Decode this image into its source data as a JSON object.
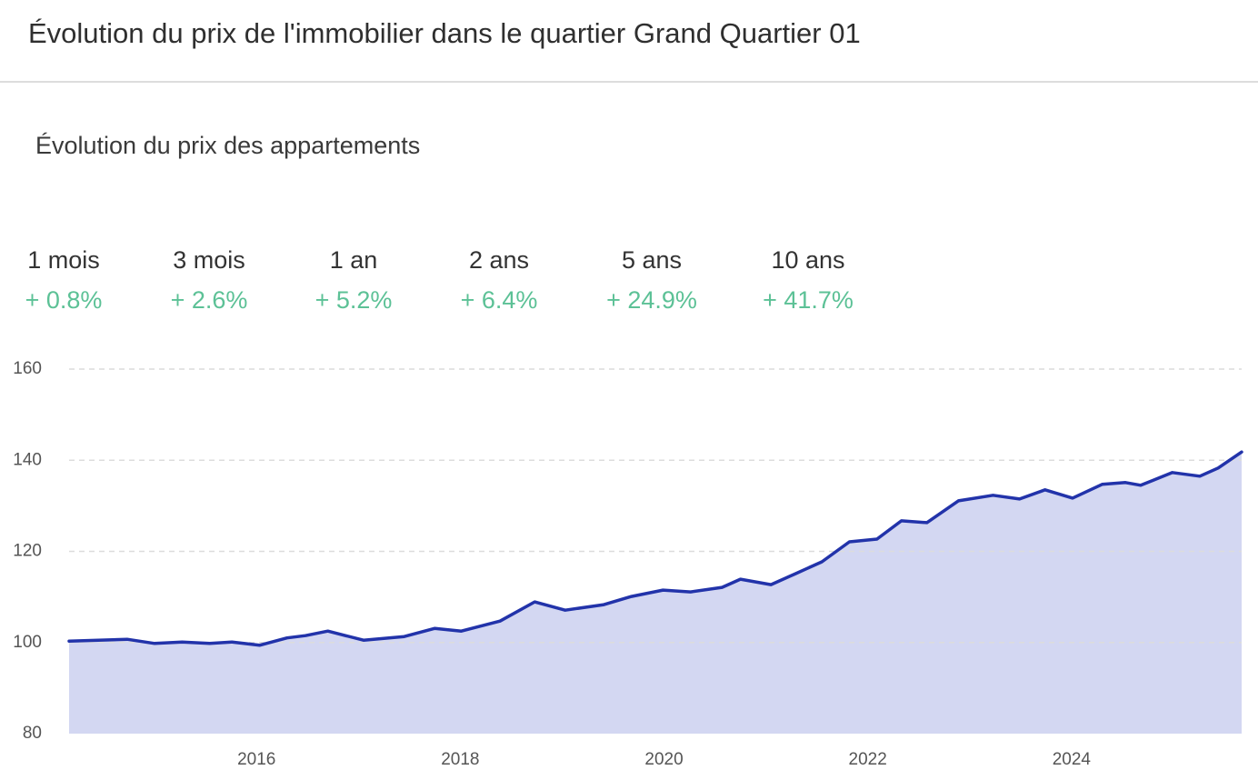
{
  "header": {
    "title": "Évolution du prix de l'immobilier dans le quartier Grand Quartier 01"
  },
  "subtitle": "Évolution du prix des appartements",
  "changes": [
    {
      "period": "1 mois",
      "value": "+ 0.8%"
    },
    {
      "period": "3 mois",
      "value": "+ 2.6%"
    },
    {
      "period": "1 an",
      "value": "+ 5.2%"
    },
    {
      "period": "2 ans",
      "value": "+ 6.4%"
    },
    {
      "period": "5 ans",
      "value": "+ 24.9%"
    },
    {
      "period": "10 ans",
      "value": "+ 41.7%"
    }
  ],
  "chart_data": {
    "type": "area",
    "x": [
      2014.16,
      2014.73,
      2015.0,
      2015.27,
      2015.54,
      2015.76,
      2016.03,
      2016.3,
      2016.48,
      2016.7,
      2017.05,
      2017.45,
      2017.75,
      2018.01,
      2018.39,
      2018.73,
      2019.03,
      2019.41,
      2019.68,
      2019.99,
      2020.26,
      2020.57,
      2020.75,
      2021.05,
      2021.29,
      2021.55,
      2021.82,
      2022.09,
      2022.33,
      2022.58,
      2022.89,
      2023.23,
      2023.49,
      2023.74,
      2024.01,
      2024.3,
      2024.53,
      2024.68,
      2024.99,
      2025.26,
      2025.44,
      2025.67
    ],
    "values": [
      100.3,
      100.7,
      99.8,
      100.1,
      99.8,
      100.1,
      99.4,
      101.0,
      101.5,
      102.5,
      100.5,
      101.3,
      103.1,
      102.5,
      104.7,
      108.9,
      107.1,
      108.3,
      110.1,
      111.5,
      111.1,
      112.1,
      113.9,
      112.7,
      115.1,
      117.7,
      122.1,
      122.7,
      126.7,
      126.3,
      131.1,
      132.3,
      131.5,
      133.5,
      131.7,
      134.7,
      135.1,
      134.5,
      137.3,
      136.5,
      138.3,
      141.8
    ],
    "color": "#2233aa",
    "fill": "#d3d7f2",
    "xlim": [
      2014.16,
      2025.67
    ],
    "xticks": [
      2016,
      2018,
      2020,
      2022,
      2024
    ],
    "ylim": [
      80,
      160
    ],
    "yticks": [
      80,
      100,
      120,
      140,
      160
    ],
    "grid": true
  }
}
